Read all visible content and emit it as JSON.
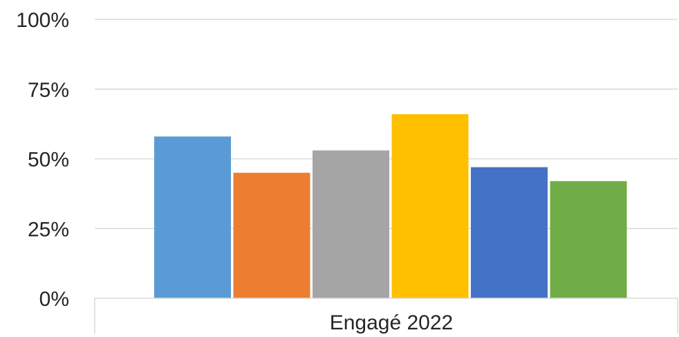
{
  "chart_data": {
    "type": "bar",
    "categories": [
      "Engagé 2022"
    ],
    "series": [
      {
        "color": "#5B9BD5",
        "values": [
          0.58
        ]
      },
      {
        "color": "#ED7D31",
        "values": [
          0.45
        ]
      },
      {
        "color": "#A5A5A5",
        "values": [
          0.53
        ]
      },
      {
        "color": "#FFC000",
        "values": [
          0.66
        ]
      },
      {
        "color": "#4472C4",
        "values": [
          0.47
        ]
      },
      {
        "color": "#70AD47",
        "values": [
          0.42
        ]
      }
    ],
    "ylim": [
      0,
      1
    ],
    "y_ticks": [
      0,
      0.25,
      0.5,
      0.75,
      1.0
    ],
    "y_tick_labels": [
      "0%",
      "25%",
      "50%",
      "75%",
      "100%"
    ],
    "grid": true,
    "legend": "none"
  }
}
